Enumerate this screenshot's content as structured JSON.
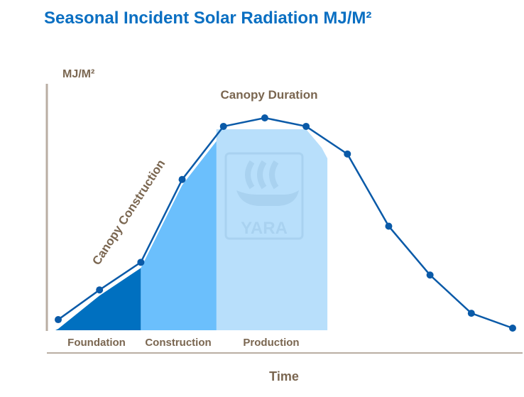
{
  "chart_data": {
    "type": "line",
    "title": "Seasonal Incident Solar Radiation MJ/M²",
    "ylabel": "MJ/M²",
    "xlabel": "Time",
    "axis_ticks": "none",
    "grid": false,
    "series": [
      {
        "values": [
          5,
          19,
          32,
          71,
          96,
          100,
          96,
          83,
          49,
          26,
          8,
          1
        ],
        "color": "#0a5aa8"
      }
    ],
    "phases": [
      {
        "label": "Foundation",
        "color": "#0070c0",
        "from_point": 0,
        "to_point": 2
      },
      {
        "label": "Construction",
        "color": "#6bbffc",
        "from_point": 2,
        "to_point": 4
      },
      {
        "label": "Production",
        "color": "#b8dffb",
        "from_point": 4,
        "to_point": 6
      }
    ],
    "annotations": {
      "canopy_construction": "Canopy Construction",
      "canopy_duration": "Canopy Duration"
    },
    "watermark": "YARA",
    "colors": {
      "title": "#0a6fc2",
      "text": "#7a6650",
      "axis": "#b9aea3"
    }
  }
}
